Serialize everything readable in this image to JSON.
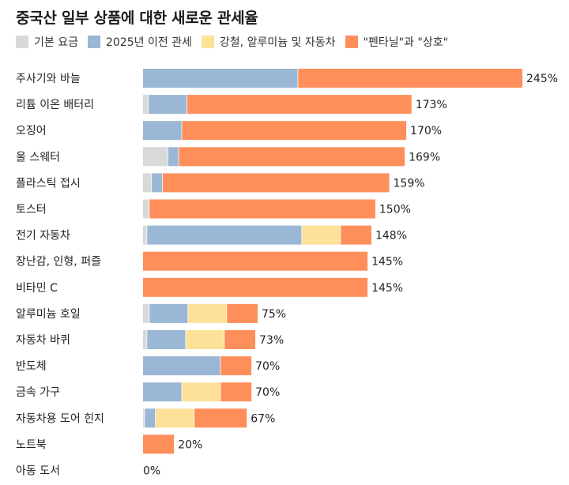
{
  "chart_data": {
    "type": "bar",
    "orientation": "horizontal",
    "stacked": true,
    "title": "중국산 일부 상품에 대한 새로운 관세율",
    "legend_position": "top",
    "grid": false,
    "xlim": [
      0,
      245
    ],
    "categories": [
      "주사기와 바늘",
      "리튬 이온 배터리",
      "오징어",
      "울 스웨터",
      "플라스틱 접시",
      "토스터",
      "전기 자동차",
      "장난감, 인형, 퍼즐",
      "비타민 C",
      "알루미늄 호일",
      "자동차 바퀴",
      "반도체",
      "금속 가구",
      "자동차용 도어 힌지",
      "노트북",
      "아동 도서"
    ],
    "totals": [
      "245%",
      "173%",
      "170%",
      "169%",
      "159%",
      "150%",
      "148%",
      "145%",
      "145%",
      "75%",
      "73%",
      "70%",
      "70%",
      "67%",
      "20%",
      "0%"
    ],
    "series": [
      {
        "name": "기본 요금",
        "color": "#d9d9d9",
        "values": [
          0,
          3.4,
          0,
          16,
          5.5,
          4,
          2.5,
          0,
          0,
          4,
          2.5,
          0,
          0,
          1,
          0,
          0
        ]
      },
      {
        "name": "2025년 이전 관세",
        "color": "#9ab7d5",
        "values": [
          100,
          25,
          25,
          7,
          7,
          0,
          100,
          0,
          0,
          25,
          25,
          50,
          25,
          7,
          0,
          0
        ]
      },
      {
        "name": "강철, 알루미늄 및 자동차",
        "color": "#fde199",
        "values": [
          0,
          0,
          0,
          0,
          0,
          0,
          25,
          0,
          0,
          25,
          25,
          0,
          25,
          25,
          0,
          0
        ]
      },
      {
        "name": "\"펜타닐\"과 \"상호\"",
        "color": "#fe8f5a",
        "values": [
          145,
          145,
          145,
          146,
          146.5,
          146,
          20,
          145,
          145,
          20,
          20,
          20,
          20,
          34,
          20,
          0
        ]
      }
    ]
  }
}
